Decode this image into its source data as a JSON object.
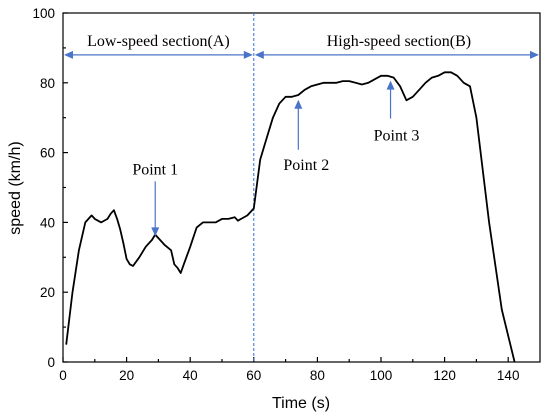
{
  "chart_data": {
    "type": "line",
    "xlabel": "Time (s)",
    "ylabel": "speed (km/h)",
    "xlim": [
      0,
      150
    ],
    "ylim": [
      0,
      100
    ],
    "xticks": [
      0,
      20,
      40,
      60,
      80,
      100,
      120,
      140
    ],
    "yticks": [
      0,
      20,
      40,
      60,
      80,
      100
    ],
    "grid": false,
    "series": [
      {
        "color": "#000000",
        "x": [
          1,
          3,
          5,
          7,
          9,
          10,
          12,
          14,
          15,
          16,
          17,
          18,
          19,
          20,
          21,
          22,
          24,
          26,
          28,
          29,
          30,
          32,
          34,
          35,
          36,
          37,
          38,
          40,
          42,
          44,
          46,
          48,
          50,
          52,
          54,
          55,
          56,
          58,
          60,
          62,
          64,
          66,
          68,
          70,
          72,
          74,
          76,
          78,
          80,
          82,
          84,
          86,
          88,
          90,
          92,
          94,
          96,
          98,
          100,
          102,
          104,
          106,
          108,
          110,
          112,
          114,
          116,
          118,
          120,
          122,
          124,
          126,
          128,
          130,
          134,
          138,
          142
        ],
        "y": [
          5,
          20,
          32,
          40,
          42,
          41,
          40,
          41,
          42.5,
          43.5,
          41,
          38,
          34,
          29.5,
          28,
          27.5,
          30,
          33,
          35,
          36.5,
          35.5,
          33.5,
          32,
          28,
          27,
          25.5,
          28,
          33,
          38.5,
          40,
          40,
          40,
          41,
          41,
          41.5,
          40.5,
          41,
          42,
          44,
          58,
          64,
          70,
          74,
          76,
          76,
          76.5,
          78,
          79,
          79.5,
          80,
          80,
          80,
          80.5,
          80.5,
          80,
          79.5,
          80,
          81,
          82,
          82,
          81.5,
          79,
          75,
          76,
          78,
          80,
          81.5,
          82,
          83,
          83,
          82,
          80,
          79,
          70,
          40,
          15,
          0
        ]
      }
    ],
    "annotations": [
      {
        "text": "Low-speed section(A)",
        "x_from": 0,
        "x_to": 60,
        "y": 88
      },
      {
        "text": "High-speed section(B)",
        "x_from": 60,
        "x_to": 150,
        "y": 88
      },
      {
        "text": "Point 1",
        "x": 29,
        "y": 36
      },
      {
        "text": "Point 2",
        "x": 74,
        "y": 76
      },
      {
        "text": "Point 3",
        "x": 103,
        "y": 81.5
      }
    ],
    "divider_x": 60
  }
}
